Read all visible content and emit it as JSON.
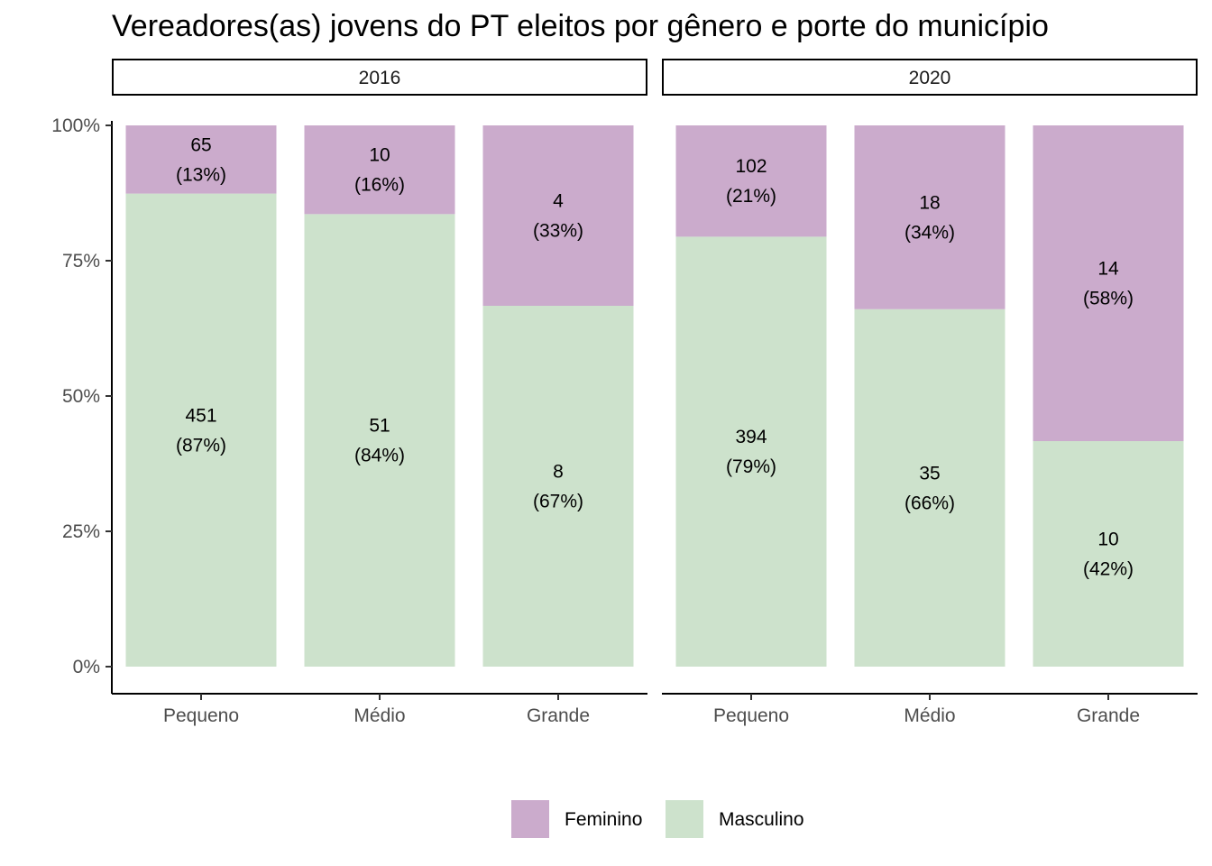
{
  "chart_data": {
    "type": "bar",
    "stacked": "percent",
    "title": "Vereadores(as) jovens do PT eleitos por gênero e porte do município",
    "xlabel": "",
    "ylabel": "",
    "ylim": [
      0,
      100
    ],
    "y_ticks": [
      "0%",
      "25%",
      "50%",
      "75%",
      "100%"
    ],
    "categories": [
      "Pequeno",
      "Médio",
      "Grande"
    ],
    "legend_position": "bottom",
    "grid": false,
    "series": [
      {
        "name": "Feminino",
        "color": "#CBABCC"
      },
      {
        "name": "Masculino",
        "color": "#CDE2CC"
      }
    ],
    "facets": [
      {
        "label": "2016",
        "bars": [
          {
            "category": "Pequeno",
            "Feminino": {
              "count": "65",
              "pct": "(13%)"
            },
            "Masculino": {
              "count": "451",
              "pct": "(87%)"
            }
          },
          {
            "category": "Médio",
            "Feminino": {
              "count": "10",
              "pct": "(16%)"
            },
            "Masculino": {
              "count": "51",
              "pct": "(84%)"
            }
          },
          {
            "category": "Grande",
            "Feminino": {
              "count": "4",
              "pct": "(33%)"
            },
            "Masculino": {
              "count": "8",
              "pct": "(67%)"
            }
          }
        ]
      },
      {
        "label": "2020",
        "bars": [
          {
            "category": "Pequeno",
            "Feminino": {
              "count": "102",
              "pct": "(21%)"
            },
            "Masculino": {
              "count": "394",
              "pct": "(79%)"
            }
          },
          {
            "category": "Médio",
            "Feminino": {
              "count": "18",
              "pct": "(34%)"
            },
            "Masculino": {
              "count": "35",
              "pct": "(66%)"
            }
          },
          {
            "category": "Grande",
            "Feminino": {
              "count": "14",
              "pct": "(58%)"
            },
            "Masculino": {
              "count": "10",
              "pct": "(42%)"
            }
          }
        ]
      }
    ]
  }
}
